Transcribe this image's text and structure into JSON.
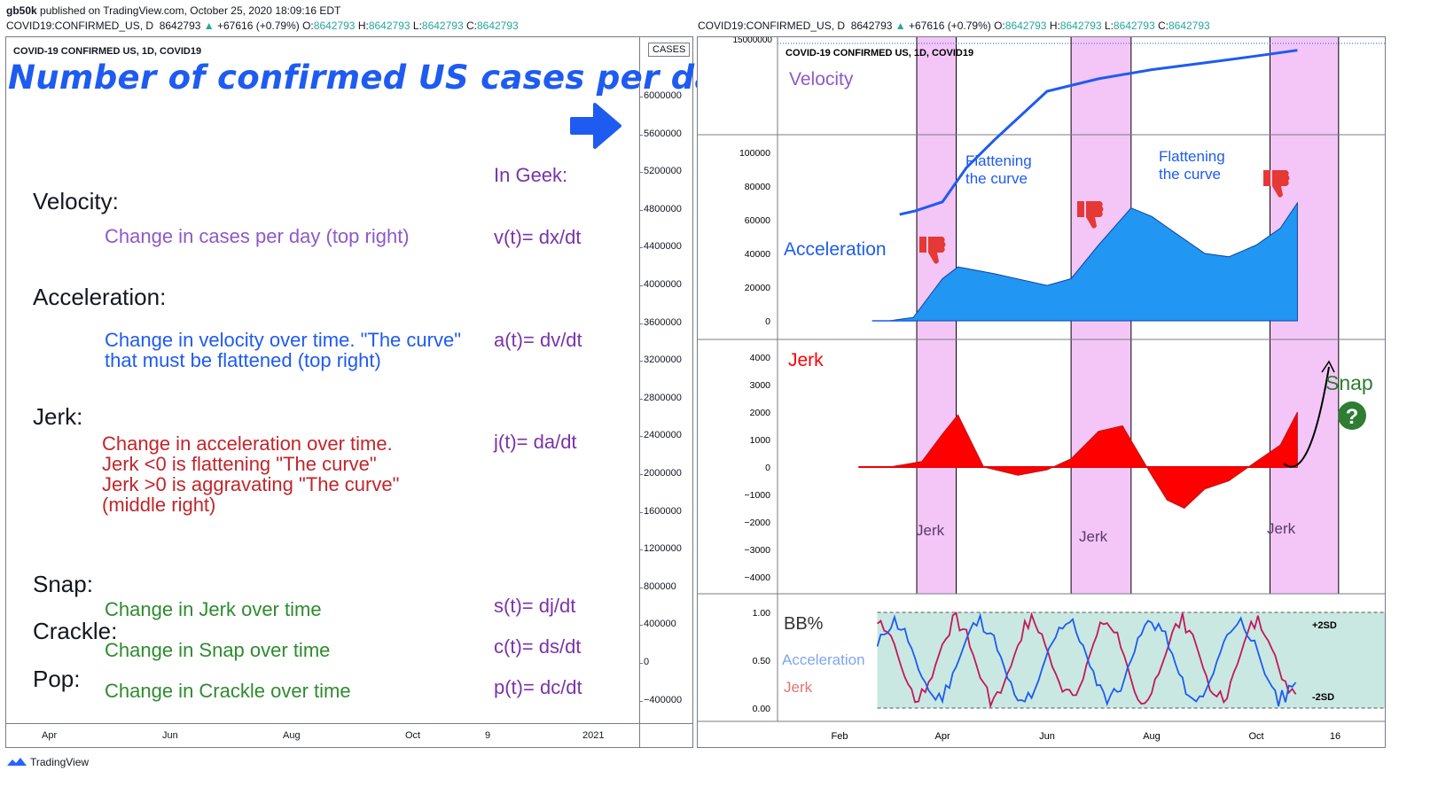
{
  "header": {
    "author": "gb50k",
    "published": "published on TradingView.com, October 25, 2020 18:09:16 EDT"
  },
  "left": {
    "symbol_line": {
      "symbol": "COVID19:CONFIRMED_US, D",
      "price": "8642793",
      "change": "+67616 (+0.79%)",
      "o_label": "O:",
      "o": "8642793",
      "h_label": "H:",
      "h": "8642793",
      "l_label": "L:",
      "l": "8642793",
      "c_label": "C:",
      "c": "8642793"
    },
    "chart_title": "COVID-19 CONFIRMED US, 1D, COVID19",
    "big_title": "Number of confirmed US cases per day",
    "cases_badge": "CASES",
    "in_geek": "In Geek:",
    "sections": {
      "velocity": {
        "heading": "Velocity:",
        "desc": "Change in cases per day (top right)",
        "formula": "v(t)= dx/dt"
      },
      "acceleration": {
        "heading": "Acceleration:",
        "desc1": "Change in velocity over time. \"The curve\"",
        "desc2": "that must be flattened (top right)",
        "formula": "a(t)= dv/dt"
      },
      "jerk": {
        "heading": "Jerk:",
        "desc1": "Change in acceleration over time.",
        "desc2": "Jerk <0 is flattening \"The curve\"",
        "desc3": "Jerk >0 is aggravating \"The curve\"",
        "desc4": "(middle right)",
        "formula": "j(t)= da/dt"
      },
      "snap": {
        "heading": "Snap:",
        "desc": "Change in Jerk over time",
        "formula": "s(t)= dj/dt"
      },
      "crackle": {
        "heading": "Crackle:",
        "desc": "Change in Snap over time",
        "formula": "c(t)= ds/dt"
      },
      "pop": {
        "heading": "Pop:",
        "desc": "Change in Crackle over time",
        "formula": "p(t)= dc/dt"
      }
    },
    "y_ticks": [
      "6000000",
      "5600000",
      "5200000",
      "4800000",
      "4400000",
      "4000000",
      "3600000",
      "3200000",
      "2800000",
      "2400000",
      "2000000",
      "1600000",
      "1200000",
      "800000",
      "400000",
      "0",
      "−400000"
    ],
    "x_ticks": [
      "Apr",
      "Jun",
      "Aug",
      "Oct",
      "9",
      "2021"
    ]
  },
  "right": {
    "symbol_line": {
      "symbol": "COVID19:CONFIRMED_US, D",
      "price": "8642793",
      "change": "+67616 (+0.79%)",
      "o_label": "O:",
      "o": "8642793",
      "h_label": "H:",
      "h": "8642793",
      "l_label": "L:",
      "l": "8642793",
      "c_label": "C:",
      "c": "8642793"
    },
    "chart_title": "COVID-19 CONFIRMED US, 1D, COVID19",
    "top_tick": "15000000",
    "velocity_label": "Velocity",
    "acceleration_label": "Acceleration",
    "flatten_1a": "Flattening",
    "flatten_1b": "the curve",
    "flatten_2a": "Flattening",
    "flatten_2b": "the curve",
    "jerk_label": "Jerk",
    "jerk_band_labels": [
      "Jerk",
      "Jerk",
      "Jerk"
    ],
    "snap_label": "Snap",
    "snap_q": "?",
    "bb_label": "BB%",
    "bb_accel": "Acceleration",
    "bb_jerk": "Jerk",
    "bb_upper": "+2SD",
    "bb_lower": "-2SD",
    "x_ticks": [
      "Feb",
      "Apr",
      "Jun",
      "Aug",
      "Oct",
      "16"
    ]
  },
  "footer": {
    "brand": "TradingView"
  },
  "colors": {
    "accent_blue": "#1e5bf0",
    "accel_fill": "#2196f3",
    "jerk_red": "#ff0000",
    "band_pink": "#f3c6f7",
    "bb_fill": "#c9e8e1",
    "snap_green": "#2e7d32",
    "bb_jerk": "#c2185b"
  },
  "chart_data": [
    {
      "type": "line",
      "title": "Velocity",
      "series": [
        {
          "name": "Velocity",
          "x": [
            "Mar 1",
            "Mar 20",
            "Apr 1",
            "Apr 15",
            "May 1",
            "Jun 1",
            "Jul 1",
            "Aug 1",
            "Sep 1",
            "Oct 1",
            "Oct 25"
          ],
          "values": [
            0,
            300000,
            1100000,
            4100000,
            6500000,
            10800000,
            11900000,
            12700000,
            13300000,
            13900000,
            14400000
          ]
        }
      ],
      "y_tick_shown": "15000000"
    },
    {
      "type": "area",
      "title": "Acceleration",
      "x": [
        "Mar 1",
        "Mar 15",
        "Apr 1",
        "Apr 10",
        "May 1",
        "Jun 1",
        "Jun 15",
        "Jul 1",
        "Jul 20",
        "Aug 1",
        "Aug 15",
        "Sep 1",
        "Sep 15",
        "Oct 1",
        "Oct 15",
        "Oct 25"
      ],
      "series": [
        {
          "name": "Acceleration",
          "values": [
            0,
            2000,
            25000,
            32000,
            28000,
            21000,
            25000,
            45000,
            67000,
            62000,
            52000,
            40000,
            38000,
            45000,
            55000,
            70000
          ]
        }
      ],
      "y_ticks": [
        0,
        20000,
        40000,
        60000,
        80000,
        100000
      ]
    },
    {
      "type": "area",
      "title": "Jerk",
      "x": [
        "Mar 1",
        "Mar 20",
        "Apr 1",
        "Apr 10",
        "Apr 25",
        "May 15",
        "Jun 1",
        "Jun 15",
        "Jul 1",
        "Jul 15",
        "Aug 1",
        "Aug 10",
        "Aug 20",
        "Sep 1",
        "Sep 15",
        "Oct 1",
        "Oct 15",
        "Oct 25"
      ],
      "series": [
        {
          "name": "Jerk",
          "values": [
            0,
            200,
            1200,
            1900,
            0,
            -300,
            -100,
            300,
            1300,
            1500,
            -300,
            -1200,
            -1500,
            -800,
            -500,
            200,
            800,
            2000
          ]
        }
      ],
      "y_ticks": [
        -4000,
        -3000,
        -2000,
        -1000,
        0,
        1000,
        2000,
        3000,
        4000
      ]
    },
    {
      "type": "line",
      "title": "BB%",
      "series": [
        {
          "name": "Acceleration"
        },
        {
          "name": "Jerk"
        }
      ],
      "y_ticks": [
        0.0,
        0.5,
        1.0
      ]
    }
  ]
}
